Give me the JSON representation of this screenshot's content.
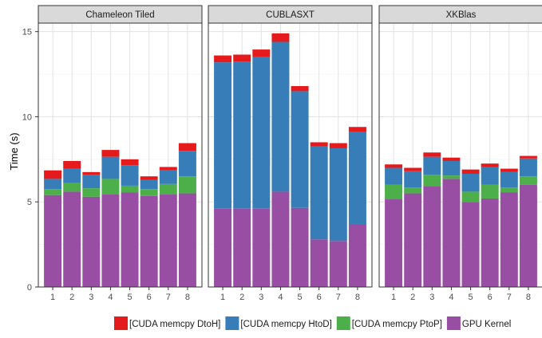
{
  "chart_data": {
    "type": "bar",
    "stacked": true,
    "faceted": true,
    "ylabel": "Time (s)",
    "xlabel": "",
    "ylim": [
      0,
      15.5
    ],
    "yticks": [
      0,
      5,
      10,
      15
    ],
    "grid": true,
    "legend_position": "bottom",
    "categories": [
      "1",
      "2",
      "3",
      "4",
      "5",
      "6",
      "7",
      "8"
    ],
    "series_names": [
      "[CUDA memcpy DtoH]",
      "[CUDA memcpy HtoD]",
      "[CUDA memcpy PtoP]",
      "GPU Kernel"
    ],
    "colors": {
      "[CUDA memcpy DtoH]": "#e41a1c",
      "[CUDA memcpy HtoD]": "#377eb8",
      "[CUDA memcpy PtoP]": "#4daf4a",
      "GPU Kernel": "#984ea3"
    },
    "panels": [
      {
        "title": "Chameleon Tiled",
        "series": [
          {
            "name": "GPU Kernel",
            "values": [
              5.4,
              5.6,
              5.3,
              5.45,
              5.55,
              5.35,
              5.45,
              5.5
            ]
          },
          {
            "name": "[CUDA memcpy PtoP]",
            "values": [
              0.35,
              0.5,
              0.5,
              0.9,
              0.4,
              0.4,
              0.6,
              1.0
            ]
          },
          {
            "name": "[CUDA memcpy HtoD]",
            "values": [
              0.6,
              0.85,
              0.8,
              1.3,
              1.2,
              0.55,
              0.8,
              1.5
            ]
          },
          {
            "name": "[CUDA memcpy DtoH]",
            "values": [
              0.5,
              0.45,
              0.15,
              0.4,
              0.35,
              0.2,
              0.2,
              0.45
            ]
          }
        ]
      },
      {
        "title": "CUBLASXT",
        "series": [
          {
            "name": "GPU Kernel",
            "values": [
              4.6,
              4.6,
              4.6,
              5.6,
              4.65,
              2.8,
              2.7,
              3.7
            ]
          },
          {
            "name": "[CUDA memcpy PtoP]",
            "values": [
              0,
              0,
              0,
              0,
              0,
              0,
              0,
              0
            ]
          },
          {
            "name": "[CUDA memcpy HtoD]",
            "values": [
              8.6,
              8.65,
              8.9,
              8.8,
              6.85,
              5.45,
              5.45,
              5.4
            ]
          },
          {
            "name": "[CUDA memcpy DtoH]",
            "values": [
              0.4,
              0.4,
              0.45,
              0.5,
              0.3,
              0.25,
              0.3,
              0.3
            ]
          }
        ]
      },
      {
        "title": "XKBlas",
        "series": [
          {
            "name": "GPU Kernel",
            "values": [
              5.15,
              5.5,
              5.9,
              6.35,
              5.0,
              5.2,
              5.55,
              6.0
            ]
          },
          {
            "name": "[CUDA memcpy PtoP]",
            "values": [
              0.85,
              0.35,
              0.7,
              0.2,
              0.6,
              0.8,
              0.3,
              0.5
            ]
          },
          {
            "name": "[CUDA memcpy HtoD]",
            "values": [
              1.0,
              0.95,
              1.05,
              0.85,
              1.05,
              1.05,
              0.9,
              1.05
            ]
          },
          {
            "name": "[CUDA memcpy DtoH]",
            "values": [
              0.2,
              0.2,
              0.25,
              0.2,
              0.25,
              0.2,
              0.2,
              0.15
            ]
          }
        ]
      }
    ]
  }
}
